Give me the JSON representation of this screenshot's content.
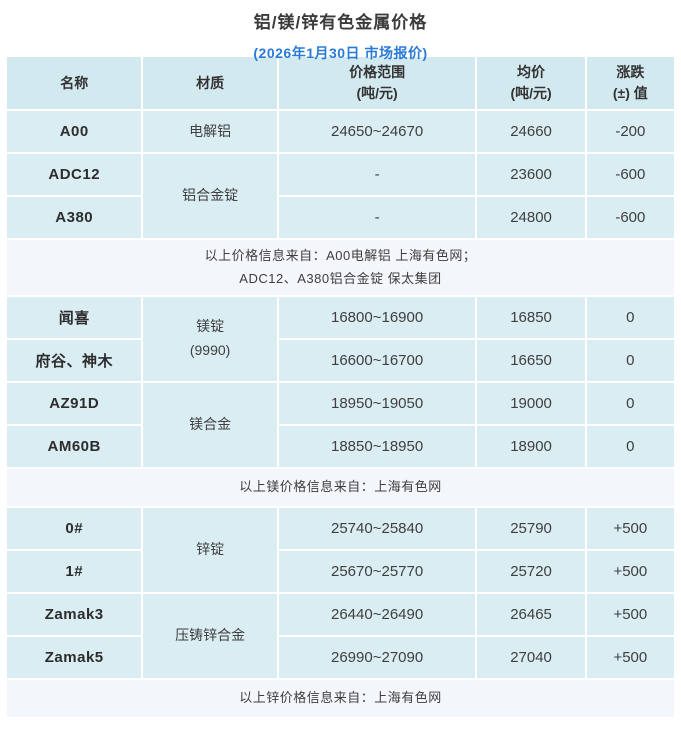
{
  "title": "铝/镁/锌有色金属价格",
  "subtitle": "(2026年1月30日 市场报价)",
  "colors": {
    "cell_bg": "#d9edf2",
    "header_bg": "#d3e9f0",
    "note_bg": "#f3f7fb",
    "accent_blue": "#2a7bd8"
  },
  "header": {
    "name": "名称",
    "material": "材质",
    "range_l1": "价格范围",
    "range_l2": "(吨/元)",
    "avg_l1": "均价",
    "avg_l2": "(吨/元)",
    "change_l1": "涨跌",
    "change_l2": "(±) 值"
  },
  "aluminum": {
    "rows": [
      {
        "name": "A00",
        "material": "电解铝",
        "range": "24650~24670",
        "avg": "24660",
        "change": "-200"
      },
      {
        "name": "ADC12",
        "material": "铝合金锭",
        "range": "-",
        "avg": "23600",
        "change": "-600"
      },
      {
        "name": "A380",
        "range": "-",
        "avg": "24800",
        "change": "-600"
      }
    ],
    "note_line1": "以上价格信息来自：A00电解铝 上海有色网；",
    "note_line2": "ADC12、A380铝合金锭 保太集团"
  },
  "magnesium": {
    "rows": [
      {
        "name": "闻喜",
        "material_l1": "镁锭",
        "material_l2": "(9990)",
        "range": "16800~16900",
        "avg": "16850",
        "change": "0"
      },
      {
        "name": "府谷、神木",
        "range": "16600~16700",
        "avg": "16650",
        "change": "0"
      },
      {
        "name": "AZ91D",
        "material": "镁合金",
        "range": "18950~19050",
        "avg": "19000",
        "change": "0"
      },
      {
        "name": "AM60B",
        "range": "18850~18950",
        "avg": "18900",
        "change": "0"
      }
    ],
    "note": "以上镁价格信息来自：上海有色网"
  },
  "zinc": {
    "rows": [
      {
        "name": "0#",
        "material": "锌锭",
        "range": "25740~25840",
        "avg": "25790",
        "change": "+500"
      },
      {
        "name": "1#",
        "range": "25670~25770",
        "avg": "25720",
        "change": "+500"
      },
      {
        "name": "Zamak3",
        "material": "压铸锌合金",
        "range": "26440~26490",
        "avg": "26465",
        "change": "+500"
      },
      {
        "name": "Zamak5",
        "range": "26990~27090",
        "avg": "27040",
        "change": "+500"
      }
    ],
    "note": "以上锌价格信息来自：上海有色网"
  }
}
